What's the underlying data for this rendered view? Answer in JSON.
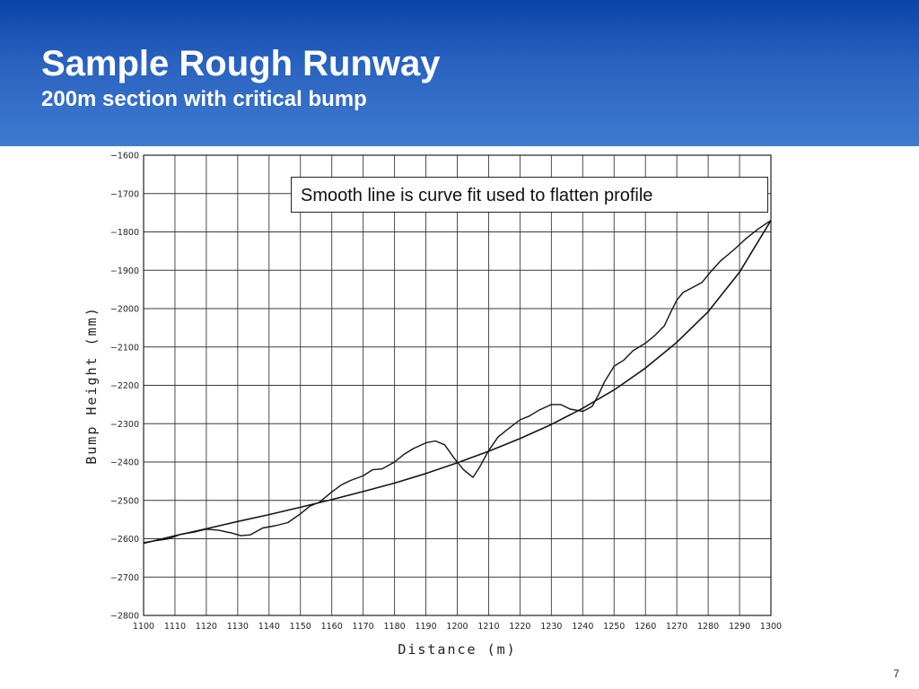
{
  "slide": {
    "title": "Sample Rough Runway",
    "subtitle": "200m section with critical bump",
    "page_number": "7",
    "header_color": "#2a63c0"
  },
  "chart_data": {
    "type": "line",
    "xlabel": "Distance (m)",
    "ylabel": "Bump Height (mm)",
    "xlim": [
      1100,
      1300
    ],
    "ylim": [
      -2800,
      -1600
    ],
    "x_ticks": [
      1100,
      1110,
      1120,
      1130,
      1140,
      1150,
      1160,
      1170,
      1180,
      1190,
      1200,
      1210,
      1220,
      1230,
      1240,
      1250,
      1260,
      1270,
      1280,
      1290,
      1300
    ],
    "y_ticks": [
      -1600,
      -1700,
      -1800,
      -1900,
      -2000,
      -2100,
      -2200,
      -2300,
      -2400,
      -2500,
      -2600,
      -2700,
      -2800
    ],
    "grid": true,
    "annotation": "Smooth line is curve fit used to flatten profile",
    "series": [
      {
        "role": "measured-profile",
        "x": [
          1100,
          1104,
          1108,
          1112,
          1116,
          1120,
          1124,
          1128,
          1131,
          1134,
          1138,
          1142,
          1146,
          1150,
          1153,
          1156,
          1160,
          1163,
          1166,
          1170,
          1173,
          1176,
          1180,
          1183,
          1186,
          1190,
          1193,
          1196,
          1199,
          1202,
          1205,
          1207,
          1210,
          1213,
          1216,
          1220,
          1223,
          1226,
          1230,
          1233,
          1236,
          1240,
          1243,
          1245,
          1247,
          1250,
          1253,
          1256,
          1260,
          1263,
          1266,
          1268,
          1270,
          1272,
          1275,
          1278,
          1281,
          1284,
          1288,
          1292,
          1296,
          1300
        ],
        "y": [
          -2610,
          -2605,
          -2600,
          -2588,
          -2583,
          -2575,
          -2578,
          -2585,
          -2592,
          -2590,
          -2572,
          -2566,
          -2558,
          -2535,
          -2515,
          -2505,
          -2478,
          -2460,
          -2448,
          -2436,
          -2420,
          -2418,
          -2400,
          -2380,
          -2365,
          -2350,
          -2345,
          -2355,
          -2390,
          -2420,
          -2440,
          -2415,
          -2370,
          -2335,
          -2315,
          -2290,
          -2280,
          -2265,
          -2250,
          -2250,
          -2262,
          -2268,
          -2255,
          -2225,
          -2190,
          -2150,
          -2135,
          -2110,
          -2090,
          -2070,
          -2045,
          -2010,
          -1978,
          -1958,
          -1945,
          -1932,
          -1902,
          -1875,
          -1848,
          -1818,
          -1792,
          -1770
        ]
      },
      {
        "role": "curve-fit",
        "x": [
          1100,
          1110,
          1120,
          1130,
          1140,
          1150,
          1160,
          1170,
          1180,
          1190,
          1200,
          1210,
          1220,
          1230,
          1240,
          1250,
          1260,
          1270,
          1280,
          1290,
          1300
        ],
        "y": [
          -2612,
          -2592,
          -2574,
          -2555,
          -2537,
          -2518,
          -2498,
          -2477,
          -2455,
          -2430,
          -2402,
          -2372,
          -2339,
          -2302,
          -2260,
          -2212,
          -2155,
          -2088,
          -2008,
          -1905,
          -1770
        ]
      }
    ]
  }
}
